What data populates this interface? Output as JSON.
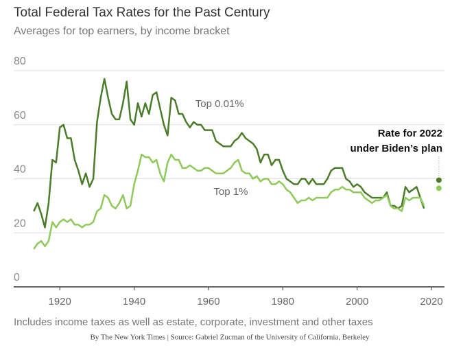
{
  "chart_data": {
    "type": "line",
    "title": "Total Federal Tax Rates for the Past Century",
    "subtitle": "Averages for top earners, by income bracket",
    "note": "Includes income taxes as well as estate, corporate, investment and other taxes",
    "source": "By The New York Times | Source: Gabriel Zucman of the University of California, Berkeley",
    "x": [
      1913,
      1914,
      1915,
      1916,
      1917,
      1918,
      1919,
      1920,
      1921,
      1922,
      1923,
      1924,
      1925,
      1926,
      1927,
      1928,
      1929,
      1930,
      1931,
      1932,
      1933,
      1934,
      1935,
      1936,
      1937,
      1938,
      1939,
      1940,
      1941,
      1942,
      1943,
      1944,
      1945,
      1946,
      1947,
      1948,
      1949,
      1950,
      1951,
      1952,
      1953,
      1954,
      1955,
      1956,
      1957,
      1958,
      1959,
      1960,
      1961,
      1962,
      1963,
      1964,
      1965,
      1966,
      1967,
      1968,
      1969,
      1970,
      1971,
      1972,
      1973,
      1974,
      1975,
      1976,
      1977,
      1978,
      1979,
      1980,
      1981,
      1982,
      1983,
      1984,
      1985,
      1986,
      1987,
      1988,
      1989,
      1990,
      1991,
      1992,
      1993,
      1994,
      1995,
      1996,
      1997,
      1998,
      1999,
      2000,
      2001,
      2002,
      2003,
      2004,
      2005,
      2006,
      2007,
      2008,
      2009,
      2010,
      2011,
      2012,
      2013,
      2014,
      2015,
      2016,
      2017,
      2018
    ],
    "series": [
      {
        "name": "Top 0.01%",
        "color": "#4a7c2a",
        "values": [
          28,
          31,
          27,
          22,
          31,
          47,
          46,
          59,
          60,
          55,
          55,
          47,
          43,
          38,
          42,
          37,
          40,
          61,
          70,
          77,
          70,
          64,
          62,
          62,
          68,
          76,
          62,
          60,
          68,
          63,
          68,
          64,
          71,
          72,
          66,
          60,
          56,
          70,
          69,
          64,
          64,
          61,
          59,
          61,
          60,
          60,
          58,
          58,
          58,
          54,
          53,
          52,
          52,
          52,
          54,
          55,
          57,
          55,
          54,
          53,
          51,
          46,
          49,
          49,
          45,
          47,
          47,
          43,
          40,
          39,
          38,
          38,
          40,
          40,
          38,
          40,
          38,
          38,
          38,
          40,
          43,
          44,
          44,
          44,
          40,
          39,
          37,
          38,
          37,
          35,
          34,
          33,
          33,
          33,
          33,
          35,
          30,
          30,
          29,
          30,
          37,
          35,
          36,
          37,
          33,
          29
        ]
      },
      {
        "name": "Top 1%",
        "color": "#8fc95a",
        "values": [
          14,
          16,
          17,
          15,
          17,
          24,
          22,
          24,
          25,
          24,
          25,
          23,
          23,
          22,
          23,
          23,
          24,
          28,
          29,
          34,
          33,
          30,
          29,
          31,
          34,
          29,
          30,
          38,
          43,
          49,
          48,
          48,
          46,
          47,
          42,
          39,
          46,
          49,
          47,
          47,
          44,
          44,
          45,
          44,
          43,
          43,
          44,
          44,
          43,
          42,
          42,
          42,
          43,
          44,
          46,
          47,
          43,
          42,
          42,
          40,
          41,
          39,
          40,
          40,
          38,
          38,
          39,
          38,
          36,
          35,
          33,
          31,
          32,
          32,
          33,
          32,
          33,
          33,
          33,
          33,
          35,
          36,
          36,
          37,
          36,
          36,
          35,
          35,
          35,
          33,
          32,
          31,
          32,
          32,
          33,
          34,
          30,
          29,
          29,
          28,
          33,
          32,
          33,
          33,
          33,
          30
        ]
      }
    ],
    "plan": {
      "label": [
        "Rate for 2022",
        "under Biden’s plan"
      ],
      "x": 2022,
      "values": [
        39.5,
        36.5
      ]
    },
    "xlim": [
      1907.6,
      2023.5
    ],
    "xticks": [
      1920,
      1940,
      1960,
      1980,
      2000,
      2020
    ],
    "ylim": [
      0,
      80
    ],
    "yticks": [
      0,
      20,
      40,
      60,
      80
    ],
    "grid": true
  }
}
